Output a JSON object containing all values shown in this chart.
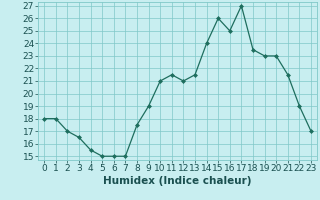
{
  "x": [
    0,
    1,
    2,
    3,
    4,
    5,
    6,
    7,
    8,
    9,
    10,
    11,
    12,
    13,
    14,
    15,
    16,
    17,
    18,
    19,
    20,
    21,
    22,
    23
  ],
  "y": [
    18,
    18,
    17,
    16.5,
    15.5,
    15,
    15,
    15,
    17.5,
    19,
    21,
    21.5,
    21,
    21.5,
    24,
    26,
    25,
    27,
    23.5,
    23,
    23,
    21.5,
    19,
    17
  ],
  "line_color": "#1e6e5e",
  "marker_color": "#1e6e5e",
  "bg_color": "#c8eef0",
  "grid_color": "#80c8c8",
  "xlabel": "Humidex (Indice chaleur)",
  "xlim": [
    -0.5,
    23.5
  ],
  "ymin": 15,
  "ymax": 27,
  "yticks": [
    15,
    16,
    17,
    18,
    19,
    20,
    21,
    22,
    23,
    24,
    25,
    26,
    27
  ],
  "xticks": [
    0,
    1,
    2,
    3,
    4,
    5,
    6,
    7,
    8,
    9,
    10,
    11,
    12,
    13,
    14,
    15,
    16,
    17,
    18,
    19,
    20,
    21,
    22,
    23
  ],
  "xlabel_fontsize": 7.5,
  "tick_fontsize": 6.5
}
